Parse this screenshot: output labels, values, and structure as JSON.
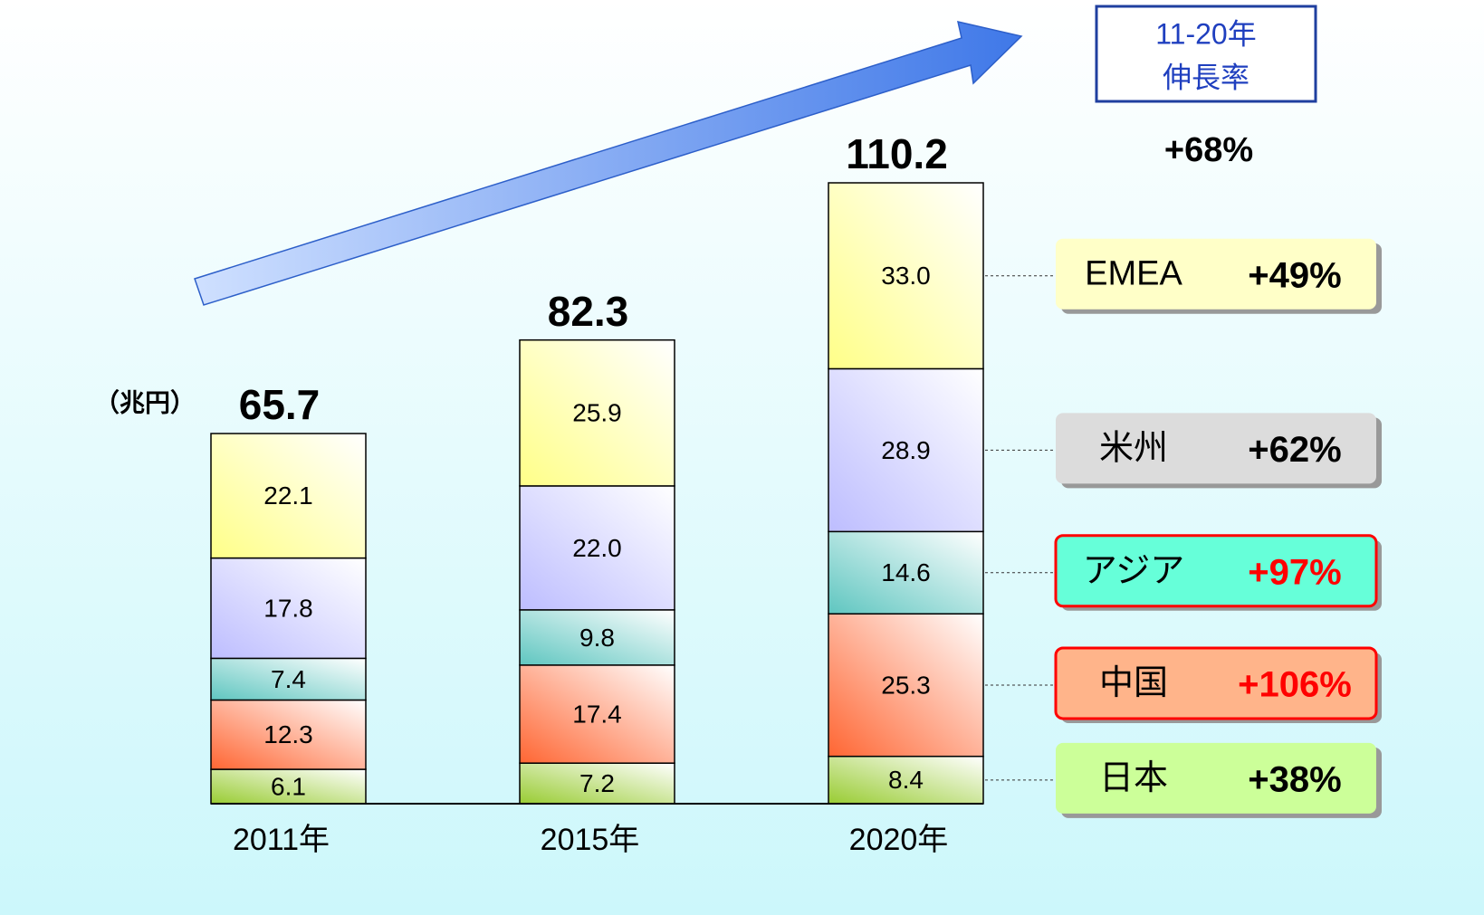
{
  "chart_data": {
    "type": "stacked-bar",
    "unit_label": "（兆円）",
    "categories": [
      "2011年",
      "2015年",
      "2020年"
    ],
    "totals": [
      65.7,
      82.3,
      110.2
    ],
    "growth_header": [
      "11-20年",
      "伸長率"
    ],
    "growth_total": "+68%",
    "series": [
      {
        "name": "日本",
        "color": "#99cc33",
        "box_color": "#ccff99",
        "highlight": false,
        "growth": "+38%",
        "values": [
          6.1,
          7.2,
          8.4
        ],
        "value_labels": [
          "6.1",
          "7.2",
          "8.4"
        ]
      },
      {
        "name": "中国",
        "color": "#ff6633",
        "box_color": "#ffb48a",
        "highlight": true,
        "growth": "+106%",
        "values": [
          12.3,
          17.4,
          25.3
        ],
        "value_labels": [
          "12.3",
          "17.4",
          "25.3"
        ]
      },
      {
        "name": "アジア",
        "color": "#5fc6c0",
        "box_color": "#66ffd9",
        "highlight": true,
        "growth": "+97%",
        "values": [
          7.4,
          9.8,
          14.6
        ],
        "value_labels": [
          "7.4",
          "9.8",
          "14.6"
        ]
      },
      {
        "name": "米州",
        "color": "#bdbdff",
        "box_color": "#dcdcdc",
        "highlight": false,
        "growth": "+62%",
        "values": [
          17.8,
          22.0,
          28.9
        ],
        "value_labels": [
          "17.8",
          "22.0",
          "28.9"
        ]
      },
      {
        "name": "EMEA",
        "color": "#ffff88",
        "box_color": "#ffffc8",
        "highlight": false,
        "growth": "+49%",
        "values": [
          22.1,
          25.9,
          33.0
        ],
        "value_labels": [
          "22.1",
          "25.9",
          "33.0"
        ]
      }
    ]
  }
}
